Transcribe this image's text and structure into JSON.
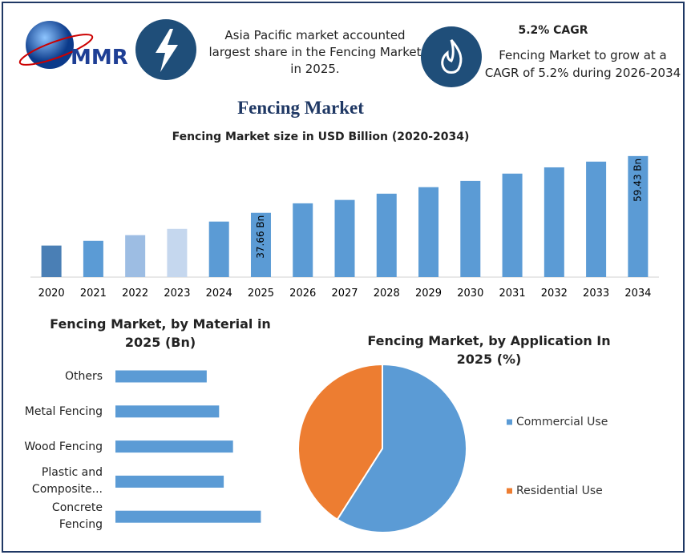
{
  "header": {
    "logo": "MMR",
    "left_text": "Asia Pacific market accounted largest share in the Fencing Market in 2025.",
    "cagr_title": "5.2% CAGR",
    "cagr_text": "Fencing Market to grow at a CAGR of 5.2% during 2026-2034",
    "title": "Fencing Market"
  },
  "chart_data": [
    {
      "type": "bar",
      "title": "Fencing Market size in USD Billion (2020-2034)",
      "categories": [
        "2020",
        "2021",
        "2022",
        "2023",
        "2024",
        "2025",
        "2026",
        "2027",
        "2028",
        "2029",
        "2030",
        "2031",
        "2032",
        "2033",
        "2034"
      ],
      "values": [
        25.1,
        26.9,
        29.1,
        31.5,
        34.3,
        37.66,
        41.3,
        42.6,
        45.0,
        47.5,
        49.9,
        52.7,
        55.1,
        57.3,
        59.43
      ],
      "value_labels": [
        null,
        null,
        null,
        null,
        null,
        "37.66 Bn",
        null,
        null,
        null,
        null,
        null,
        null,
        null,
        null,
        "59.43 Bn"
      ],
      "colors": [
        "#4a7fb5",
        "#5b9bd5",
        "#9dbde3",
        "#c5d7ee",
        "#5b9bd5",
        "#5b9bd5",
        "#5b9bd5",
        "#5b9bd5",
        "#5b9bd5",
        "#5b9bd5",
        "#5b9bd5",
        "#5b9bd5",
        "#5b9bd5",
        "#5b9bd5",
        "#5b9bd5"
      ],
      "ylim": [
        13,
        64
      ]
    },
    {
      "type": "hbar",
      "title": "Fencing Market, by Material in 2025 (Bn)",
      "categories": [
        "Others",
        "Metal Fencing",
        "Wood Fencing",
        "Plastic and Composite...",
        "Concrete Fencing"
      ],
      "values": [
        5.9,
        6.7,
        7.6,
        7.0,
        9.4
      ],
      "color": "#5b9bd5",
      "xlim": [
        0,
        10
      ]
    },
    {
      "type": "pie",
      "title": "Fencing Market, by Application In 2025 (%)",
      "series": [
        {
          "name": "Commercial Use",
          "color": "#5b9bd5",
          "value": 59
        },
        {
          "name": "Residential Use",
          "color": "#ed7d31",
          "value": 41
        }
      ]
    }
  ]
}
